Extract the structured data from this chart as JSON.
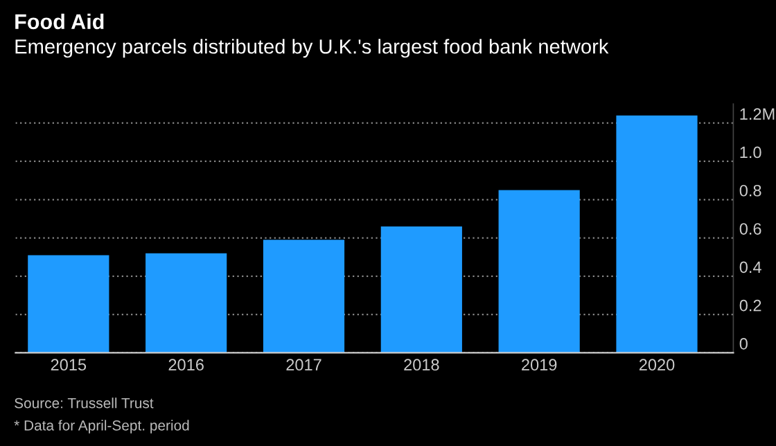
{
  "chart_data": {
    "type": "bar",
    "title": "Food Aid",
    "subtitle": "Emergency parcels distributed by U.K.'s largest food bank network",
    "categories": [
      "2015",
      "2016",
      "2017",
      "2018",
      "2019",
      "2020"
    ],
    "values": [
      0.51,
      0.52,
      0.59,
      0.66,
      0.85,
      1.24
    ],
    "color": "#1f9bff",
    "ylim": [
      0,
      1.3
    ],
    "yticks": [
      0,
      0.2,
      0.4,
      0.6,
      0.8,
      {
        "value": 1.0,
        "label": "1.0"
      },
      {
        "value": 1.2,
        "label": "1.2M"
      }
    ],
    "grid": "y",
    "annotations": [
      "Source: Trussell Trust",
      "* Data for April-Sept. period"
    ]
  }
}
